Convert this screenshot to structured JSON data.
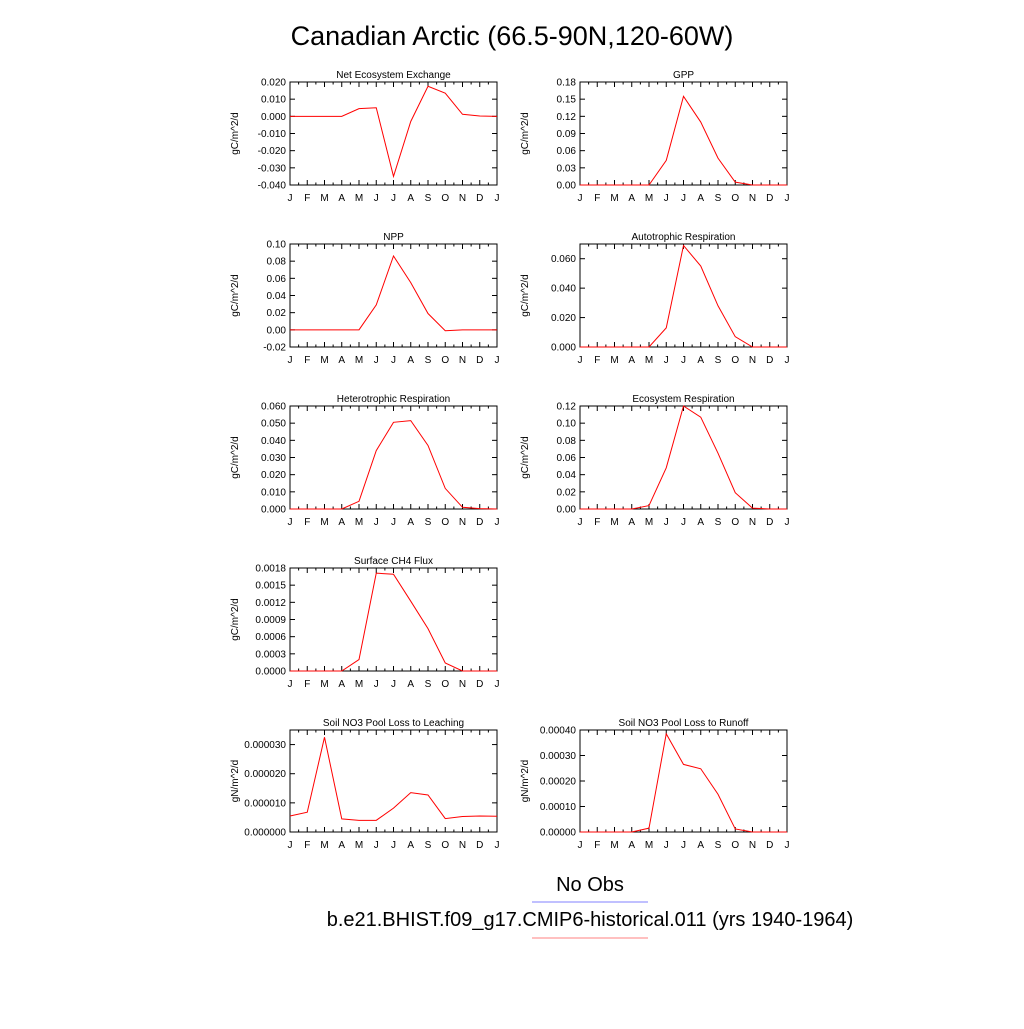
{
  "figure": {
    "title": "Canadian Arctic (66.5-90N,120-60W)",
    "legend": [
      {
        "label": "No Obs",
        "color": "#8080ff"
      },
      {
        "label": "b.e21.BHIST.f09_g17.CMIP6-historical.011 (yrs 1940-1964)",
        "color": "#ff8080"
      }
    ],
    "line_color": "#ff0000"
  },
  "chart_data": [
    {
      "type": "line",
      "title": "Net Ecosystem Exchange",
      "ylabel": "gC/m^2/d",
      "categories": [
        "J",
        "F",
        "M",
        "A",
        "M",
        "J",
        "J",
        "A",
        "S",
        "O",
        "N",
        "D",
        "J"
      ],
      "ylim": [
        -0.04,
        0.02
      ],
      "yticks": [
        "0.020",
        "0.010",
        "0.000",
        "-0.010",
        "-0.020",
        "-0.030",
        "-0.040"
      ],
      "series": [
        {
          "values": [
            0.0,
            0.0,
            0.0,
            0.0,
            0.0045,
            0.005,
            -0.035,
            -0.003,
            0.0175,
            0.0135,
            0.0012,
            0.0002,
            0.0
          ]
        }
      ]
    },
    {
      "type": "line",
      "title": "GPP",
      "ylabel": "gC/m^2/d",
      "categories": [
        "J",
        "F",
        "M",
        "A",
        "M",
        "J",
        "J",
        "A",
        "S",
        "O",
        "N",
        "D",
        "J"
      ],
      "ylim": [
        0,
        0.18
      ],
      "yticks": [
        "0.18",
        "0.15",
        "0.12",
        "0.09",
        "0.06",
        "0.03",
        "0.00"
      ],
      "series": [
        {
          "values": [
            0.0,
            0.0,
            0.0,
            0.0,
            0.0,
            0.043,
            0.155,
            0.11,
            0.047,
            0.005,
            0.0,
            0.0,
            0.0
          ]
        }
      ]
    },
    {
      "type": "line",
      "title": "NPP",
      "ylabel": "gC/m^2/d",
      "categories": [
        "J",
        "F",
        "M",
        "A",
        "M",
        "J",
        "J",
        "A",
        "S",
        "O",
        "N",
        "D",
        "J"
      ],
      "ylim": [
        -0.02,
        0.1
      ],
      "yticks": [
        "0.10",
        "0.08",
        "0.06",
        "0.04",
        "0.02",
        "0.00",
        "-0.02"
      ],
      "series": [
        {
          "values": [
            0.0,
            0.0,
            0.0,
            0.0,
            0.0,
            0.029,
            0.086,
            0.055,
            0.019,
            -0.001,
            0.0,
            0.0,
            0.0
          ]
        }
      ]
    },
    {
      "type": "line",
      "title": "Autotrophic Respiration",
      "ylabel": "gC/m^2/d",
      "categories": [
        "J",
        "F",
        "M",
        "A",
        "M",
        "J",
        "J",
        "A",
        "S",
        "O",
        "N",
        "D",
        "J"
      ],
      "ylim": [
        0,
        0.07
      ],
      "yticks": [
        "0.060",
        "0.040",
        "0.020",
        "0.000"
      ],
      "series": [
        {
          "values": [
            0.0,
            0.0,
            0.0,
            0.0,
            0.0,
            0.013,
            0.069,
            0.055,
            0.028,
            0.007,
            0.0,
            0.0,
            0.0
          ]
        }
      ]
    },
    {
      "type": "line",
      "title": "Heterotrophic Respiration",
      "ylabel": "gC/m^2/d",
      "categories": [
        "J",
        "F",
        "M",
        "A",
        "M",
        "J",
        "J",
        "A",
        "S",
        "O",
        "N",
        "D",
        "J"
      ],
      "ylim": [
        0,
        0.06
      ],
      "yticks": [
        "0.060",
        "0.050",
        "0.040",
        "0.030",
        "0.020",
        "0.010",
        "0.000"
      ],
      "series": [
        {
          "values": [
            0.0,
            0.0,
            0.0,
            0.0,
            0.0045,
            0.034,
            0.0505,
            0.0515,
            0.037,
            0.012,
            0.001,
            0.0002,
            0.0
          ]
        }
      ]
    },
    {
      "type": "line",
      "title": "Ecosystem Respiration",
      "ylabel": "gC/m^2/d",
      "categories": [
        "J",
        "F",
        "M",
        "A",
        "M",
        "J",
        "J",
        "A",
        "S",
        "O",
        "N",
        "D",
        "J"
      ],
      "ylim": [
        0,
        0.12
      ],
      "yticks": [
        "0.12",
        "0.10",
        "0.08",
        "0.06",
        "0.04",
        "0.02",
        "0.00"
      ],
      "series": [
        {
          "values": [
            0.0,
            0.0,
            0.0,
            0.0,
            0.004,
            0.048,
            0.12,
            0.107,
            0.065,
            0.019,
            0.001,
            0.0,
            0.0
          ]
        }
      ]
    },
    {
      "type": "line",
      "title": "Surface CH4 Flux",
      "ylabel": "gC/m^2/d",
      "categories": [
        "J",
        "F",
        "M",
        "A",
        "M",
        "J",
        "J",
        "A",
        "S",
        "O",
        "N",
        "D",
        "J"
      ],
      "ylim": [
        0,
        0.0018
      ],
      "yticks": [
        "0.0018",
        "0.0015",
        "0.0012",
        "0.0009",
        "0.0006",
        "0.0003",
        "0.0000"
      ],
      "series": [
        {
          "values": [
            0.0,
            0.0,
            0.0,
            0.0,
            0.0002,
            0.00171,
            0.00169,
            0.00122,
            0.00074,
            0.00014,
            0.0,
            0.0,
            0.0
          ]
        }
      ]
    },
    {
      "type": "line",
      "title": "Soil NO3 Pool Loss to Leaching",
      "ylabel": "gN/m^2/d",
      "categories": [
        "J",
        "F",
        "M",
        "A",
        "M",
        "J",
        "J",
        "A",
        "S",
        "O",
        "N",
        "D",
        "J"
      ],
      "ylim": [
        0,
        3.5e-05
      ],
      "yticks": [
        "0.000030",
        "0.000020",
        "0.000010",
        "0.000000"
      ],
      "series": [
        {
          "values": [
            5.5e-06,
            6.8e-06,
            3.25e-05,
            4.5e-06,
            4e-06,
            4e-06,
            8.2e-06,
            1.35e-05,
            1.27e-05,
            4.6e-06,
            5.3e-06,
            5.5e-06,
            5.4e-06
          ]
        }
      ]
    },
    {
      "type": "line",
      "title": "Soil NO3 Pool Loss to Runoff",
      "ylabel": "gN/m^2/d",
      "categories": [
        "J",
        "F",
        "M",
        "A",
        "M",
        "J",
        "J",
        "A",
        "S",
        "O",
        "N",
        "D",
        "J"
      ],
      "ylim": [
        0,
        0.0004
      ],
      "yticks": [
        "0.00040",
        "0.00030",
        "0.00020",
        "0.00010",
        "0.00000"
      ],
      "series": [
        {
          "values": [
            0.0,
            0.0,
            0.0,
            0.0,
            1.5e-05,
            0.000385,
            0.000265,
            0.000248,
            0.000148,
            1.2e-05,
            0.0,
            0.0,
            0.0
          ]
        }
      ]
    }
  ]
}
